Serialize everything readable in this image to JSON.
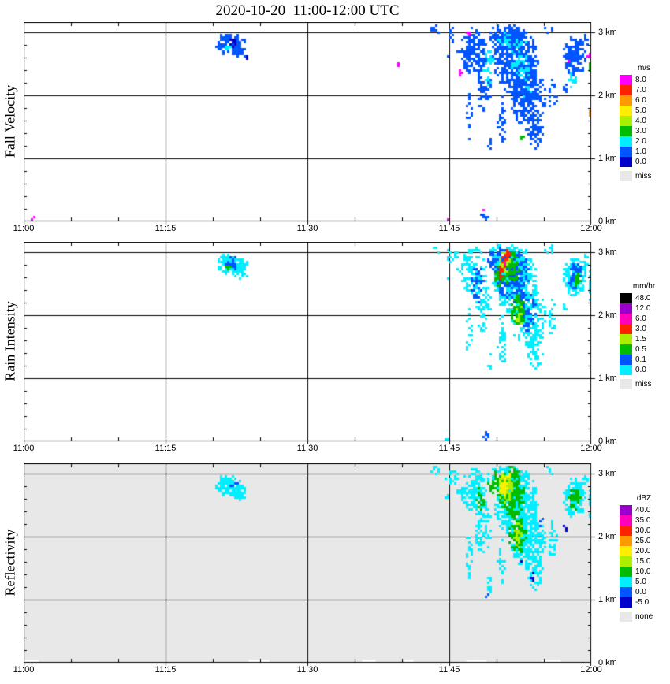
{
  "title": "2020-10-20  11:00-12:00 UTC",
  "axes": {
    "x_ticks": [
      {
        "t": 0,
        "label": "11:00"
      },
      {
        "t": 15,
        "label": "11:15"
      },
      {
        "t": 30,
        "label": "11:30"
      },
      {
        "t": 45,
        "label": "11:45"
      },
      {
        "t": 60,
        "label": "12:00"
      }
    ],
    "y_ticks": [
      {
        "h": 0,
        "label": "0 km"
      },
      {
        "h": 1,
        "label": "1 km"
      },
      {
        "h": 2,
        "label": "2 km"
      },
      {
        "h": 3,
        "label": "3 km"
      }
    ],
    "time_range_minutes": [
      0,
      60
    ],
    "height_range_km": [
      0,
      3.16
    ],
    "minor_tick_minutes": 5,
    "minor_tick_km": 0.2
  },
  "cells_format": "[time_min_after_1100, height_km, time_radius_min, height_radius_km, value, density]",
  "chart_data": [
    {
      "type": "heatmap",
      "name": "fall_velocity",
      "title": "Fall Velocity",
      "units": "m/s",
      "background": "#ffffff",
      "scale": {
        "levels": [
          0,
          1,
          2,
          3,
          4,
          5,
          6,
          7,
          8
        ],
        "colors": [
          "#0000cc",
          "#0055ff",
          "#00eeff",
          "#00bb00",
          "#aaee00",
          "#ffee00",
          "#ff9900",
          "#ff2200",
          "#ff00ff"
        ]
      },
      "legend": {
        "title": "m/s",
        "entries": [
          {
            "label": "8.0",
            "color": "#ff00ff"
          },
          {
            "label": "7.0",
            "color": "#ff2200"
          },
          {
            "label": "6.0",
            "color": "#ff9900"
          },
          {
            "label": "5.0",
            "color": "#ffee00"
          },
          {
            "label": "4.0",
            "color": "#aaee00"
          },
          {
            "label": "3.0",
            "color": "#00bb00"
          },
          {
            "label": "2.0",
            "color": "#00eeff"
          },
          {
            "label": "1.0",
            "color": "#0055ff"
          },
          {
            "label": "0.0",
            "color": "#0000cc"
          }
        ],
        "missing": {
          "label": "miss",
          "color": "#e8e8e8"
        }
      },
      "cells": [
        [
          22,
          2.8,
          1.7,
          0.17,
          1.5,
          0.95
        ],
        [
          21.3,
          2.9,
          0.7,
          0.09,
          1.5,
          0.9
        ],
        [
          22.8,
          2.68,
          0.8,
          0.1,
          1.5,
          0.8
        ],
        [
          22.2,
          2.82,
          0.6,
          0.08,
          0.5,
          0.7
        ],
        [
          21.6,
          2.74,
          0.35,
          0.05,
          2.5,
          0.8
        ],
        [
          23.6,
          2.6,
          0.25,
          0.04,
          0.5,
          1
        ],
        [
          39.7,
          2.5,
          0.15,
          0.04,
          8.5,
          1
        ],
        [
          43.6,
          3.05,
          0.5,
          0.07,
          1.5,
          0.55
        ],
        [
          45.3,
          2.95,
          0.7,
          0.12,
          1.5,
          0.5
        ],
        [
          44.8,
          2.62,
          0.25,
          0.05,
          1.5,
          0.8
        ],
        [
          46,
          2.72,
          0.25,
          0.05,
          1.5,
          0.8
        ],
        [
          46.2,
          2.35,
          0.2,
          0.05,
          8.5,
          1
        ],
        [
          47.6,
          2.7,
          1.4,
          0.38,
          1.5,
          0.8
        ],
        [
          48.6,
          2.15,
          0.9,
          0.42,
          1.5,
          0.55
        ],
        [
          51,
          2.92,
          2.1,
          0.22,
          1.5,
          0.85
        ],
        [
          52,
          2.55,
          2.4,
          0.55,
          1.5,
          0.9
        ],
        [
          53.4,
          1.95,
          1.9,
          0.5,
          1.5,
          0.8
        ],
        [
          50.6,
          1.6,
          0.5,
          0.4,
          1.5,
          0.55
        ],
        [
          54.1,
          1.45,
          0.8,
          0.3,
          1.5,
          0.7
        ],
        [
          47.1,
          1.75,
          0.3,
          0.45,
          1.5,
          0.45
        ],
        [
          49.3,
          1.25,
          0.25,
          0.15,
          1.5,
          0.6
        ],
        [
          55.6,
          3.05,
          0.6,
          0.08,
          1.5,
          0.5
        ],
        [
          55.9,
          1.95,
          0.5,
          0.3,
          1.5,
          0.5
        ],
        [
          52.4,
          2.62,
          1.1,
          0.32,
          2.5,
          0.5
        ],
        [
          49.2,
          2.45,
          0.6,
          0.3,
          2.5,
          0.45
        ],
        [
          53.2,
          2.2,
          0.7,
          0.25,
          2.5,
          0.4
        ],
        [
          50.9,
          2.88,
          0.8,
          0.14,
          2.5,
          0.45
        ],
        [
          58.3,
          2.62,
          1.25,
          0.33,
          1.5,
          0.85
        ],
        [
          58.1,
          2.25,
          0.5,
          0.14,
          2.5,
          0.5
        ],
        [
          59.4,
          2.9,
          0.4,
          0.12,
          1.5,
          0.6
        ],
        [
          57.3,
          2.12,
          0.25,
          0.07,
          1.5,
          0.8
        ],
        [
          47,
          2.98,
          0.18,
          0.05,
          8.5,
          1
        ],
        [
          57.6,
          2.52,
          0.18,
          0.05,
          8.5,
          1
        ],
        [
          52.8,
          1.33,
          0.2,
          0.05,
          3.5,
          1
        ],
        [
          59.8,
          2.62,
          0.18,
          0.1,
          8.5,
          0.9
        ],
        [
          59.85,
          2.45,
          0.15,
          0.09,
          3.5,
          0.9
        ],
        [
          59.9,
          1.75,
          0.15,
          0.07,
          6.5,
          0.9
        ],
        [
          48.8,
          0.08,
          0.45,
          0.08,
          1.5,
          0.75
        ],
        [
          48.6,
          0.17,
          0.12,
          0.03,
          8.5,
          1
        ],
        [
          0.9,
          0.04,
          0.35,
          0.04,
          8.5,
          0.8
        ],
        [
          2,
          0.03,
          0.15,
          0.03,
          1.5,
          1
        ],
        [
          44.8,
          0.03,
          0.2,
          0.03,
          8.5,
          1
        ]
      ]
    },
    {
      "type": "heatmap",
      "name": "rain_intensity",
      "title": "Rain Intensity",
      "units": "mm/hr",
      "background": "#ffffff",
      "scale": {
        "levels": [
          0,
          0.1,
          0.5,
          1.5,
          3,
          6,
          12,
          48
        ],
        "colors": [
          "#00eeff",
          "#0055ff",
          "#00bb00",
          "#aaee00",
          "#ff2200",
          "#ff00bb",
          "#9900cc",
          "#000000"
        ]
      },
      "legend": {
        "title": "mm/hr",
        "entries": [
          {
            "label": "48.0",
            "color": "#000000"
          },
          {
            "label": "12.0",
            "color": "#9900cc"
          },
          {
            "label": "6.0",
            "color": "#ff00bb"
          },
          {
            "label": "3.0",
            "color": "#ff2200"
          },
          {
            "label": "1.5",
            "color": "#aaee00"
          },
          {
            "label": "0.5",
            "color": "#00bb00"
          },
          {
            "label": "0.1",
            "color": "#0055ff"
          },
          {
            "label": "0.0",
            "color": "#00eeff"
          }
        ],
        "missing": {
          "label": "miss",
          "color": "#e8e8e8"
        }
      },
      "cells": [
        [
          22,
          2.8,
          1.7,
          0.17,
          0.05,
          0.9
        ],
        [
          21.3,
          2.9,
          0.7,
          0.09,
          0.05,
          0.85
        ],
        [
          22.8,
          2.68,
          0.8,
          0.1,
          0.05,
          0.75
        ],
        [
          22.1,
          2.83,
          0.9,
          0.11,
          0.3,
          0.8
        ],
        [
          21.6,
          2.76,
          0.3,
          0.05,
          1,
          0.8
        ],
        [
          23.6,
          2.6,
          0.25,
          0.04,
          0.05,
          1
        ],
        [
          43.6,
          3.05,
          0.5,
          0.07,
          0.05,
          0.5
        ],
        [
          45.3,
          2.95,
          0.7,
          0.12,
          0.05,
          0.5
        ],
        [
          44.8,
          2.62,
          0.25,
          0.05,
          0.05,
          0.8
        ],
        [
          46,
          2.72,
          0.25,
          0.05,
          0.05,
          0.8
        ],
        [
          47.6,
          2.7,
          1.4,
          0.38,
          0.05,
          0.75
        ],
        [
          48.6,
          2.15,
          0.9,
          0.42,
          0.05,
          0.55
        ],
        [
          51,
          2.92,
          2.1,
          0.22,
          0.05,
          0.8
        ],
        [
          52,
          2.55,
          2.4,
          0.55,
          0.05,
          0.85
        ],
        [
          53.4,
          1.95,
          1.9,
          0.5,
          0.05,
          0.75
        ],
        [
          50.6,
          1.6,
          0.5,
          0.4,
          0.05,
          0.5
        ],
        [
          54.1,
          1.45,
          0.8,
          0.3,
          0.05,
          0.65
        ],
        [
          47.1,
          1.75,
          0.3,
          0.45,
          0.05,
          0.45
        ],
        [
          49.3,
          1.25,
          0.25,
          0.15,
          0.05,
          0.6
        ],
        [
          55.6,
          3.05,
          0.6,
          0.08,
          0.05,
          0.5
        ],
        [
          55.9,
          1.95,
          0.5,
          0.3,
          0.05,
          0.45
        ],
        [
          59.9,
          2.5,
          0.15,
          0.3,
          0.05,
          0.6
        ],
        [
          51.8,
          2.6,
          1.8,
          0.42,
          0.3,
          0.7
        ],
        [
          50.3,
          2.88,
          1.2,
          0.2,
          0.3,
          0.7
        ],
        [
          53.2,
          2.05,
          1,
          0.32,
          0.3,
          0.6
        ],
        [
          48,
          2.5,
          0.7,
          0.3,
          0.3,
          0.5
        ],
        [
          51.6,
          2.72,
          1,
          0.3,
          1,
          0.75
        ],
        [
          52.3,
          2.05,
          0.75,
          0.28,
          1,
          0.65
        ],
        [
          50.2,
          2.62,
          0.5,
          0.18,
          1,
          0.7
        ],
        [
          50.9,
          2.82,
          0.65,
          0.2,
          2,
          0.8
        ],
        [
          52.4,
          2,
          0.4,
          0.16,
          2,
          0.6
        ],
        [
          50.4,
          2.68,
          0.32,
          0.11,
          4,
          1
        ],
        [
          50.9,
          2.86,
          0.34,
          0.12,
          4,
          1
        ],
        [
          51.3,
          2.98,
          0.25,
          0.08,
          4,
          0.9
        ],
        [
          50.8,
          2.82,
          0.12,
          0.04,
          7,
          1
        ],
        [
          58.3,
          2.62,
          1.25,
          0.33,
          0.05,
          0.85
        ],
        [
          58.3,
          2.62,
          0.8,
          0.22,
          0.3,
          0.7
        ],
        [
          58.5,
          2.58,
          0.4,
          0.12,
          1,
          0.7
        ],
        [
          59.4,
          2.9,
          0.4,
          0.12,
          0.05,
          0.6
        ],
        [
          57.3,
          2.12,
          0.25,
          0.07,
          0.05,
          0.8
        ],
        [
          48.8,
          0.08,
          0.4,
          0.07,
          0.3,
          0.7
        ],
        [
          44.8,
          0.03,
          0.2,
          0.03,
          0.05,
          1
        ]
      ]
    },
    {
      "type": "heatmap",
      "name": "reflectivity",
      "title": "Reflectivity",
      "units": "dBZ",
      "background": "#e8e8e8",
      "white_gaps": [
        [
          0,
          1.6,
          0,
          0.05
        ],
        [
          23.8,
          26,
          0,
          0.05
        ],
        [
          35.8,
          37.2,
          0,
          0.05
        ],
        [
          40.2,
          41.2,
          0,
          0.05
        ],
        [
          46.8,
          48.9,
          0,
          0.05
        ],
        [
          54.8,
          56.8,
          0,
          0.05
        ]
      ],
      "scale": {
        "levels": [
          -5,
          0,
          5,
          10,
          15,
          20,
          25,
          30,
          35,
          40
        ],
        "colors": [
          "#0000cc",
          "#0055ff",
          "#00eeff",
          "#00bb00",
          "#aaee00",
          "#ffee00",
          "#ff9900",
          "#ff2200",
          "#ff00bb",
          "#9900cc"
        ]
      },
      "legend": {
        "title": "dBZ",
        "entries": [
          {
            "label": "40.0",
            "color": "#9900cc"
          },
          {
            "label": "35.0",
            "color": "#ff00bb"
          },
          {
            "label": "30.0",
            "color": "#ff2200"
          },
          {
            "label": "25.0",
            "color": "#ff9900"
          },
          {
            "label": "20.0",
            "color": "#ffee00"
          },
          {
            "label": "15.0",
            "color": "#aaee00"
          },
          {
            "label": "10.0",
            "color": "#00bb00"
          },
          {
            "label": "5.0",
            "color": "#00eeff"
          },
          {
            "label": "0.0",
            "color": "#0055ff"
          },
          {
            "label": "-5.0",
            "color": "#0000cc"
          }
        ],
        "missing": {
          "label": "none",
          "color": "#e8e8e8"
        }
      },
      "cells": [
        [
          22,
          2.8,
          1.7,
          0.17,
          7,
          0.95
        ],
        [
          21.3,
          2.9,
          0.7,
          0.09,
          7,
          0.9
        ],
        [
          22.8,
          2.68,
          0.8,
          0.1,
          7,
          0.8
        ],
        [
          22.3,
          2.8,
          0.5,
          0.08,
          2,
          0.5
        ],
        [
          43.6,
          3.05,
          0.5,
          0.07,
          7,
          0.5
        ],
        [
          45.3,
          2.95,
          0.7,
          0.12,
          7,
          0.5
        ],
        [
          44.8,
          2.62,
          0.25,
          0.05,
          7,
          0.8
        ],
        [
          46,
          2.72,
          0.25,
          0.05,
          7,
          0.8
        ],
        [
          47.6,
          2.7,
          1.4,
          0.38,
          7,
          0.8
        ],
        [
          48.6,
          2.15,
          0.9,
          0.42,
          7,
          0.6
        ],
        [
          51,
          2.92,
          2.1,
          0.22,
          7,
          0.85
        ],
        [
          52,
          2.55,
          2.4,
          0.55,
          7,
          0.9
        ],
        [
          53.4,
          1.95,
          1.9,
          0.5,
          7,
          0.8
        ],
        [
          50.6,
          1.6,
          0.5,
          0.4,
          7,
          0.55
        ],
        [
          54.1,
          1.45,
          0.8,
          0.3,
          7,
          0.7
        ],
        [
          47.1,
          1.75,
          0.3,
          0.45,
          7,
          0.5
        ],
        [
          49.3,
          1.25,
          0.25,
          0.15,
          7,
          0.6
        ],
        [
          55.6,
          3.05,
          0.6,
          0.08,
          7,
          0.5
        ],
        [
          55.9,
          1.95,
          0.5,
          0.3,
          7,
          0.5
        ],
        [
          58.3,
          2.62,
          1.25,
          0.33,
          7,
          0.9
        ],
        [
          59.4,
          2.9,
          0.4,
          0.12,
          7,
          0.6
        ],
        [
          59.9,
          2.5,
          0.15,
          0.3,
          7,
          0.6
        ],
        [
          51.6,
          2.7,
          1.4,
          0.42,
          12,
          0.8
        ],
        [
          52.2,
          2.05,
          0.95,
          0.35,
          12,
          0.75
        ],
        [
          50.2,
          2.85,
          1.1,
          0.2,
          12,
          0.75
        ],
        [
          48.2,
          2.6,
          0.5,
          0.25,
          12,
          0.5
        ],
        [
          58.3,
          2.62,
          0.75,
          0.2,
          12,
          0.7
        ],
        [
          51,
          2.78,
          0.8,
          0.26,
          17,
          0.8
        ],
        [
          52.3,
          2.02,
          0.5,
          0.2,
          17,
          0.65
        ],
        [
          50.7,
          2.8,
          0.45,
          0.16,
          22,
          0.95
        ],
        [
          51.2,
          2.95,
          0.25,
          0.08,
          22,
          0.85
        ],
        [
          53.8,
          1.35,
          0.3,
          0.1,
          -2,
          0.8
        ],
        [
          52.6,
          1.62,
          0.2,
          0.07,
          -2,
          0.7
        ],
        [
          54.6,
          2.25,
          0.3,
          0.1,
          2,
          0.5
        ],
        [
          57.3,
          2.12,
          0.25,
          0.07,
          -2,
          0.8
        ],
        [
          49,
          1.05,
          0.2,
          0.06,
          2,
          0.7
        ]
      ]
    }
  ]
}
